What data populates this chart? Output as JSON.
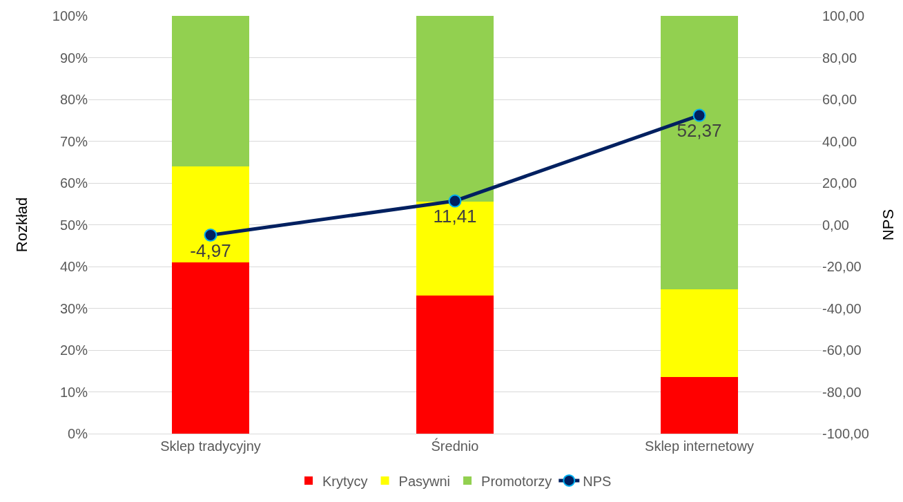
{
  "chart_data": {
    "type": "bar",
    "stacked": true,
    "ylabel": "Rozkład",
    "y2label": "NPS",
    "categories": [
      "Sklep tradycyjny",
      "Średnio",
      "Sklep internetowy"
    ],
    "series": [
      {
        "name": "Krytycy",
        "color": "#ff0000",
        "values": [
          41,
          33,
          13.5
        ]
      },
      {
        "name": "Pasywni",
        "color": "#ffff00",
        "values": [
          23,
          22.5,
          21
        ]
      },
      {
        "name": "Promotorzy",
        "color": "#92d050",
        "values": [
          36,
          44.5,
          65.5
        ]
      },
      {
        "name": "NPS",
        "type": "line",
        "axis": "y2",
        "color": "#002060",
        "marker": "circle",
        "values": [
          -4.97,
          11.41,
          52.37
        ],
        "value_labels": [
          "-4,97",
          "11,41",
          "52,37"
        ]
      }
    ],
    "ylim": [
      0,
      100
    ],
    "yticks": [
      {
        "value": 0,
        "label": "0%"
      },
      {
        "value": 10,
        "label": "10%"
      },
      {
        "value": 20,
        "label": "20%"
      },
      {
        "value": 30,
        "label": "30%"
      },
      {
        "value": 40,
        "label": "40%"
      },
      {
        "value": 50,
        "label": "50%"
      },
      {
        "value": 60,
        "label": "60%"
      },
      {
        "value": 70,
        "label": "70%"
      },
      {
        "value": 80,
        "label": "80%"
      },
      {
        "value": 90,
        "label": "90%"
      },
      {
        "value": 100,
        "label": "100%"
      }
    ],
    "y2lim": [
      -100,
      100
    ],
    "y2ticks": [
      {
        "value": -100,
        "label": "-100,00"
      },
      {
        "value": -80,
        "label": "-80,00"
      },
      {
        "value": -60,
        "label": "-60,00"
      },
      {
        "value": -40,
        "label": "-40,00"
      },
      {
        "value": -20,
        "label": "-20,00"
      },
      {
        "value": 0,
        "label": "0,00"
      },
      {
        "value": 20,
        "label": "20,00"
      },
      {
        "value": 40,
        "label": "40,00"
      },
      {
        "value": 60,
        "label": "60,00"
      },
      {
        "value": 80,
        "label": "80,00"
      },
      {
        "value": 100,
        "label": "100,00"
      }
    ],
    "grid": "y",
    "legend": "bottom"
  }
}
